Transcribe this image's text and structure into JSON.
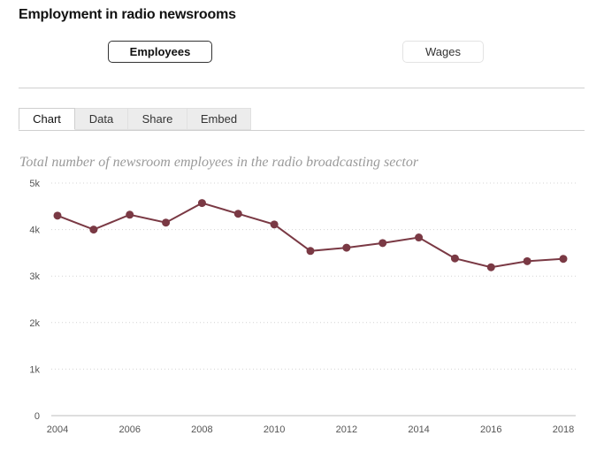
{
  "header": {
    "title": "Employment in radio newsrooms"
  },
  "toggles": {
    "employees": "Employees",
    "wages": "Wages"
  },
  "tabs": [
    {
      "label": "Chart"
    },
    {
      "label": "Data"
    },
    {
      "label": "Share"
    },
    {
      "label": "Embed"
    }
  ],
  "colors": {
    "series": "#7a3944",
    "grid": "#d4d4d4"
  },
  "chart_data": {
    "type": "line",
    "title": "Total number of newsroom employees in the radio broadcasting sector",
    "xlabel": "",
    "ylabel": "",
    "x": [
      2004,
      2005,
      2006,
      2007,
      2008,
      2009,
      2010,
      2011,
      2012,
      2013,
      2014,
      2015,
      2016,
      2017,
      2018
    ],
    "series": [
      {
        "values": [
          4300,
          4000,
          4320,
          4150,
          4570,
          4340,
          4110,
          3540,
          3610,
          3710,
          3830,
          3380,
          3190,
          3320,
          3370
        ]
      }
    ],
    "xticks": [
      "2004",
      "2006",
      "2008",
      "2010",
      "2012",
      "2014",
      "2016",
      "2018"
    ],
    "yticks": [
      "0",
      "1k",
      "2k",
      "3k",
      "4k",
      "5k"
    ],
    "ylim": [
      0,
      5000
    ],
    "grid": true
  }
}
